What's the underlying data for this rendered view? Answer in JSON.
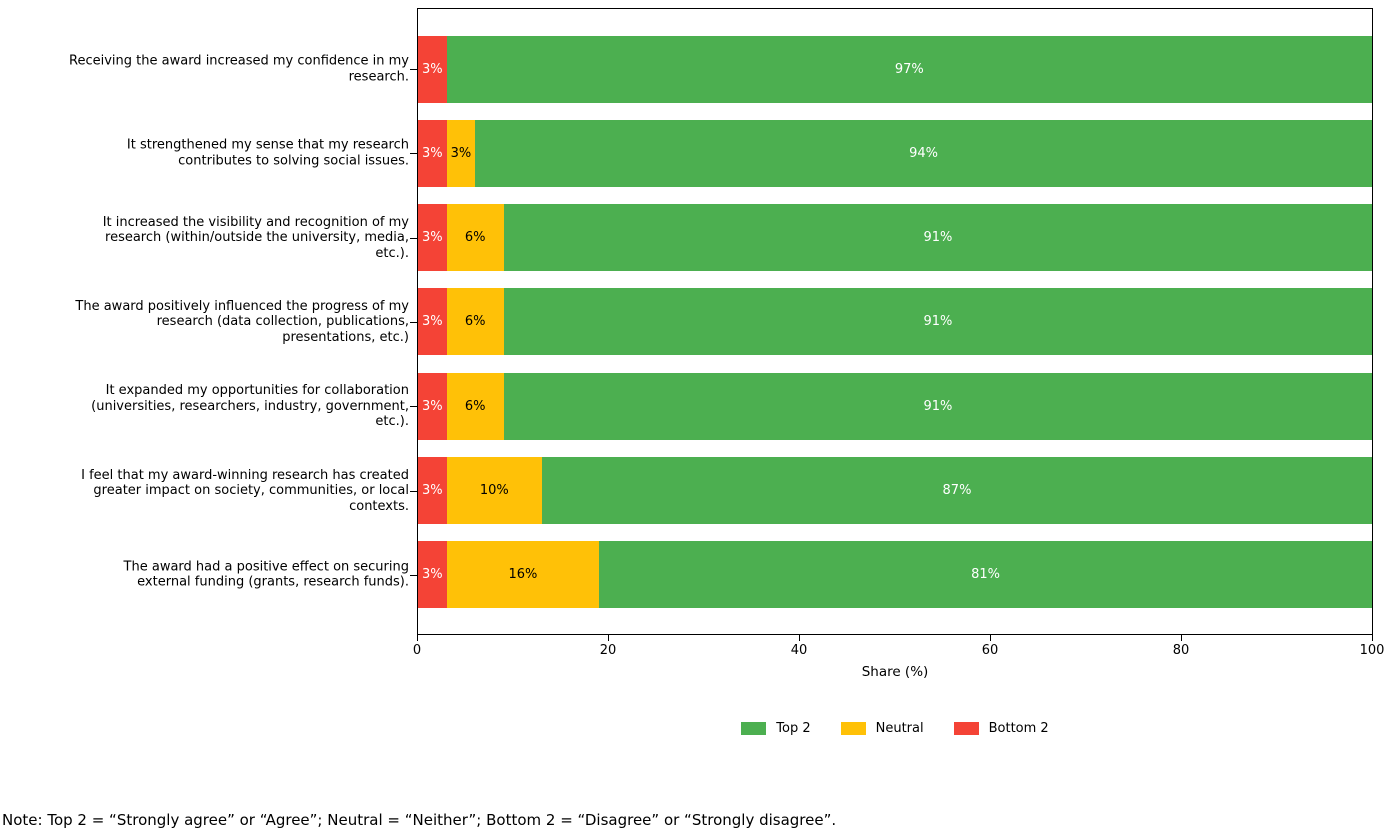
{
  "chart_data": {
    "type": "bar",
    "orientation": "horizontal",
    "stacked": true,
    "title": "",
    "xlabel": "Share (%)",
    "ylabel": "",
    "xlim": [
      0,
      100
    ],
    "xticks": [
      0,
      20,
      40,
      60,
      80,
      100
    ],
    "grid": false,
    "bar_label_format": "{value}%",
    "categories": [
      "Receiving the award increased my confidence in my\nresearch.",
      "It strengthened my sense that my research\ncontributes to solving social issues.",
      "It increased the visibility and recognition of my\nresearch (within/outside the university, media,\netc.).",
      "The award positively influenced the progress of my\nresearch (data collection, publications,\npresentations, etc.)",
      "It expanded my opportunities for collaboration\n(universities, researchers, industry, government,\netc.).",
      "I feel that my award-winning research has created\ngreater impact on society, communities, or local\ncontexts.",
      "The award had a positive effect on securing\nexternal funding (grants, research funds)."
    ],
    "series": [
      {
        "name": "Bottom 2",
        "color": "#F44336",
        "text_color": "#FFFFFF",
        "values": [
          3,
          3,
          3,
          3,
          3,
          3,
          3
        ]
      },
      {
        "name": "Neutral",
        "color": "#FFC107",
        "text_color": "#000000",
        "values": [
          0,
          3,
          6,
          6,
          6,
          10,
          16
        ]
      },
      {
        "name": "Top 2",
        "color": "#4CAF50",
        "text_color": "#FFFFFF",
        "values": [
          97,
          94,
          91,
          91,
          91,
          87,
          81
        ]
      }
    ],
    "legend": {
      "position": "bottom-center",
      "entries": [
        {
          "label": "Top 2",
          "color": "#4CAF50"
        },
        {
          "label": "Neutral",
          "color": "#FFC107"
        },
        {
          "label": "Bottom 2",
          "color": "#F44336"
        }
      ]
    }
  },
  "note": "Note: Top 2 = “Strongly agree” or “Agree”; Neutral = “Neither”; Bottom 2 = “Disagree” or “Strongly disagree”."
}
